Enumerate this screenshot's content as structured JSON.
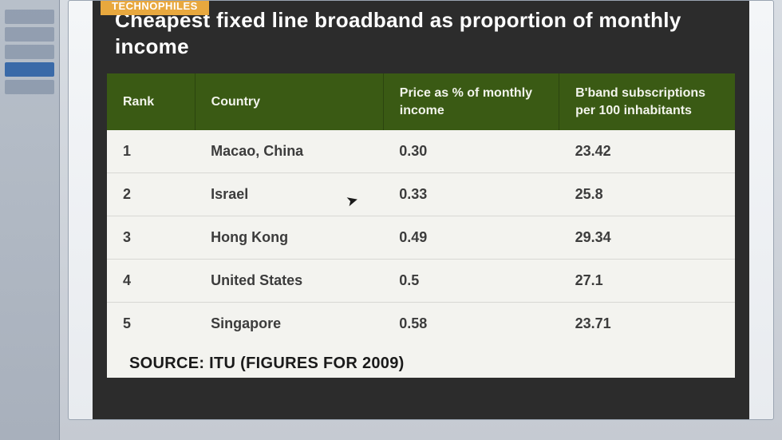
{
  "overlay": {
    "tag": "TECHNOPHILES"
  },
  "sidebar": {
    "items": [
      {
        "label": ""
      },
      {
        "label": ""
      },
      {
        "label": ""
      },
      {
        "label": ""
      },
      {
        "label": ""
      }
    ]
  },
  "slide": {
    "title": "Cheapest fixed line broadband as proportion of monthly income",
    "source": "SOURCE: ITU (FIGURES FOR 2009)"
  },
  "table": {
    "type": "table",
    "header_bg": "#3a5a14",
    "header_fg": "#f2f4ec",
    "row_bg": "#f3f3ef",
    "row_fg": "#3c3c3c",
    "border_color": "#d8d8d4",
    "column_widths": [
      "14%",
      "30%",
      "28%",
      "28%"
    ],
    "columns": [
      "Rank",
      "Country",
      "Price as % of monthly income",
      "B'band subscriptions per 100 inhabitants"
    ],
    "rows": [
      [
        "1",
        "Macao, China",
        "0.30",
        "23.42"
      ],
      [
        "2",
        "Israel",
        "0.33",
        "25.8"
      ],
      [
        "3",
        "Hong Kong",
        "0.49",
        "29.34"
      ],
      [
        "4",
        "United States",
        "0.5",
        "27.1"
      ],
      [
        "5",
        "Singapore",
        "0.58",
        "23.71"
      ]
    ],
    "header_fontsize": 16,
    "cell_fontsize": 18
  },
  "colors": {
    "slide_bg": "#2c2c2c",
    "title_fg": "#ffffff",
    "tag_bg": "#e8a83e",
    "tag_fg": "#ffffff"
  }
}
